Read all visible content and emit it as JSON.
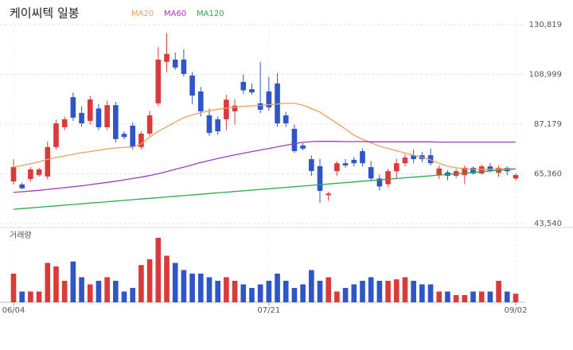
{
  "chart_data": {
    "type": "candlestick",
    "title": "케이씨텍 일봉",
    "up_color": "#d93a3a",
    "down_color": "#2f56c9",
    "candles": {
      "open": [
        62000,
        60700,
        63100,
        64800,
        64200,
        77100,
        85800,
        99000,
        92100,
        88600,
        94000,
        85800,
        95500,
        82900,
        86500,
        77100,
        83000,
        96300,
        114500,
        115500,
        115500,
        108500,
        101500,
        91000,
        89300,
        89300,
        92800,
        105700,
        102500,
        96300,
        101500,
        105000,
        91000,
        85100,
        77800,
        71800,
        68700,
        56000,
        66500,
        70000,
        71500,
        75300,
        68300,
        63300,
        60800,
        66500,
        70000,
        73500,
        73500,
        73500,
        65000,
        66000,
        64500,
        64800,
        68000,
        65500,
        68600,
        65800,
        68000,
        63300
      ],
      "high": [
        71800,
        61400,
        68300,
        68000,
        79500,
        89000,
        90500,
        101000,
        95000,
        99500,
        96000,
        97500,
        97000,
        84000,
        88000,
        84000,
        93000,
        121000,
        127000,
        118500,
        120000,
        110000,
        103500,
        94000,
        90500,
        100000,
        98000,
        109000,
        105000,
        114500,
        108000,
        109500,
        92500,
        87000,
        78800,
        73500,
        72000,
        57500,
        71000,
        71800,
        72800,
        76500,
        71000,
        65000,
        67500,
        72000,
        74000,
        76000,
        75000,
        76500,
        69000,
        67000,
        67500,
        69000,
        68500,
        69500,
        70000,
        69000,
        68500,
        65500
      ],
      "low": [
        60700,
        58600,
        62100,
        64100,
        63000,
        76000,
        84500,
        88500,
        86000,
        87000,
        84500,
        84500,
        79000,
        80500,
        76000,
        76000,
        82000,
        95000,
        110000,
        111000,
        108000,
        96000,
        90500,
        82000,
        82500,
        84500,
        87000,
        100500,
        100000,
        92000,
        93000,
        86000,
        86000,
        74500,
        75700,
        64500,
        52500,
        53500,
        64500,
        68000,
        68500,
        68500,
        62000,
        58000,
        59500,
        63000,
        68500,
        70000,
        70500,
        69000,
        63000,
        62500,
        63500,
        60800,
        65000,
        65000,
        66000,
        64000,
        64800,
        62500
      ],
      "close": [
        68300,
        59000,
        67300,
        67300,
        77100,
        87500,
        89300,
        90000,
        87500,
        98000,
        85800,
        95500,
        80600,
        81500,
        77100,
        83000,
        91000,
        115500,
        118000,
        112000,
        109200,
        99700,
        92800,
        83300,
        84000,
        97900,
        95300,
        102000,
        101100,
        93500,
        94500,
        87500,
        87500,
        75300,
        76400,
        66600,
        57900,
        56700,
        70000,
        69000,
        70000,
        70000,
        63300,
        59800,
        66500,
        70000,
        72500,
        71800,
        71800,
        70000,
        67700,
        64500,
        66500,
        68000,
        65500,
        68600,
        66800,
        68000,
        66500,
        64800
      ]
    },
    "series": [
      {
        "name": "MA20",
        "color": "#e8a060",
        "values": [
          68300,
          69000,
          69800,
          70600,
          71800,
          72500,
          73200,
          73900,
          74600,
          75100,
          75700,
          76300,
          76700,
          77000,
          77100,
          78500,
          81500,
          84000,
          86000,
          88000,
          90000,
          91200,
          92200,
          93000,
          93700,
          94200,
          94600,
          95000,
          95200,
          95400,
          95700,
          96000,
          96300,
          96300,
          95500,
          94000,
          92500,
          90000,
          87500,
          85000,
          82300,
          80500,
          79000,
          77500,
          76500,
          75500,
          74500,
          73500,
          72500,
          71500,
          70000,
          68700,
          68000,
          67500,
          67300,
          67300,
          67400,
          67500,
          67600,
          67600
        ]
      },
      {
        "name": "MA60",
        "color": "#9b3fb5",
        "values": [
          57200,
          57500,
          57800,
          58100,
          58500,
          58900,
          59300,
          59700,
          60100,
          60600,
          61100,
          61600,
          62100,
          62700,
          63300,
          63900,
          64600,
          65400,
          66300,
          67300,
          68300,
          69300,
          70300,
          71200,
          72100,
          72900,
          73700,
          74400,
          75100,
          75800,
          76500,
          77200,
          77900,
          78600,
          79200,
          79500,
          79600,
          79600,
          79600,
          79500,
          79500,
          79500,
          79400,
          79400,
          79400,
          79400,
          79400,
          79400,
          79400,
          79400,
          79300,
          79300,
          79300,
          79300,
          79300,
          79300,
          79300,
          79300,
          79300,
          79300
        ]
      },
      {
        "name": "MA120",
        "color": "#2aa853",
        "values": [
          49800,
          50100,
          50400,
          50700,
          51000,
          51300,
          51600,
          51900,
          52200,
          52500,
          52800,
          53100,
          53400,
          53700,
          54000,
          54300,
          54600,
          54900,
          55200,
          55500,
          55800,
          56100,
          56400,
          56700,
          57000,
          57300,
          57600,
          57900,
          58200,
          58500,
          58800,
          59100,
          59400,
          59700,
          60000,
          60300,
          60600,
          60900,
          61200,
          61500,
          61800,
          62100,
          62400,
          62700,
          63000,
          63300,
          63600,
          63900,
          64200,
          64500,
          64800,
          65100,
          65400,
          65700,
          66000,
          66300,
          66600,
          66900,
          67200,
          67500
        ]
      }
    ],
    "ylim": [
      43540,
      130819
    ],
    "yticks": [
      {
        "value": 130819,
        "label": "130,819"
      },
      {
        "value": 108999,
        "label": "108,999"
      },
      {
        "value": 87179,
        "label": "87,179"
      },
      {
        "value": 65360,
        "label": "65,360"
      },
      {
        "value": 43540,
        "label": "43,540"
      }
    ],
    "xticks": [
      {
        "value": 0,
        "label": "06/04"
      },
      {
        "value": 30,
        "label": "07/21"
      },
      {
        "value": 59,
        "label": "09/02"
      }
    ],
    "volume": {
      "label": "거래량",
      "ylim": [
        0,
        100
      ],
      "values": [
        40,
        15,
        15,
        15,
        55,
        50,
        30,
        57,
        35,
        25,
        30,
        35,
        30,
        15,
        20,
        52,
        60,
        90,
        65,
        55,
        45,
        40,
        40,
        35,
        30,
        35,
        30,
        25,
        20,
        25,
        30,
        40,
        30,
        20,
        25,
        45,
        30,
        35,
        15,
        20,
        25,
        30,
        35,
        30,
        30,
        32,
        35,
        30,
        25,
        25,
        15,
        15,
        10,
        10,
        15,
        15,
        15,
        30,
        15,
        12
      ]
    },
    "grid": true
  }
}
